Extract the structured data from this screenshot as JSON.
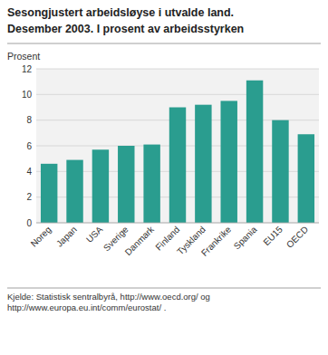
{
  "chart_data": {
    "type": "bar",
    "title": "Sesongjustert arbeidsløyse i utvalde land.",
    "subtitle": "Desember 2003. I prosent av arbeidsstyrken",
    "ylabel": "Prosent",
    "categories": [
      "Noreg",
      "Japan",
      "USA",
      "Sverige",
      "Danmark",
      "Finland",
      "Tyskland",
      "Frankrike",
      "Spania",
      "EU15",
      "OECD"
    ],
    "values": [
      4.6,
      4.9,
      5.7,
      6.0,
      6.1,
      9.0,
      9.2,
      9.5,
      11.1,
      8.0,
      6.9
    ],
    "color": "#2a9d8f",
    "ylim": [
      0,
      12
    ],
    "yticks": [
      0,
      2,
      4,
      6,
      8,
      10,
      12
    ],
    "grid": true,
    "source": "Kjelde: Statistisk sentralbyrå, http://www.oecd.org/ og\nhttp://www.europa.eu.int/comm/eurostat/ ."
  }
}
